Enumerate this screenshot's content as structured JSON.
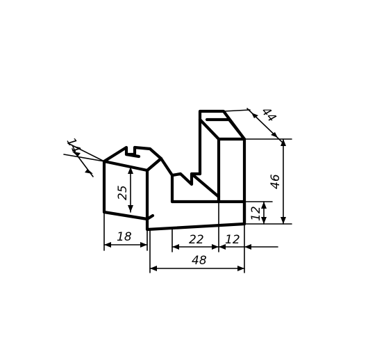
{
  "dimensions": {
    "d14": "14",
    "d25": "25",
    "d18": "18",
    "d22": "22",
    "d12_bottom": "12",
    "d48": "48",
    "d12_right": "12",
    "d46": "46",
    "d44": "44"
  },
  "colors": {
    "line": "#000000",
    "paper": "#ffffff"
  }
}
